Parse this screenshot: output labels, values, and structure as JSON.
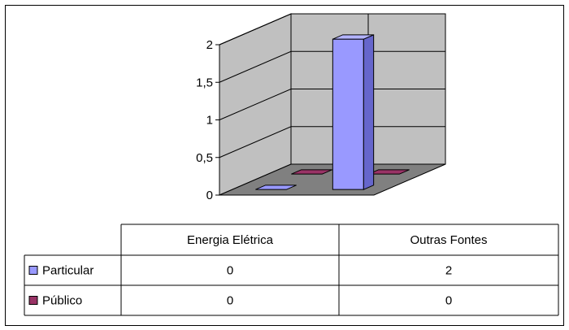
{
  "chart_data": {
    "type": "bar",
    "style": "3d-column",
    "categories": [
      "Energia Elétrica",
      "Outras Fontes"
    ],
    "series": [
      {
        "name": "Particular",
        "values": [
          0,
          2
        ],
        "color": "#9999FF",
        "side_color": "#6666CC",
        "top_color": "#B3B3FF"
      },
      {
        "name": "Público",
        "values": [
          0,
          0
        ],
        "color": "#993366",
        "side_color": "#662244",
        "top_color": "#B34D80"
      }
    ],
    "ylim": [
      0,
      2
    ],
    "y_ticks": [
      "0",
      "0,5",
      "1",
      "1,5",
      "2"
    ],
    "y_tick_values": [
      0,
      0.5,
      1,
      1.5,
      2
    ],
    "grid": true,
    "wall_color": "#C0C0C0",
    "floor_color": "#808080",
    "legend": "data-table"
  }
}
